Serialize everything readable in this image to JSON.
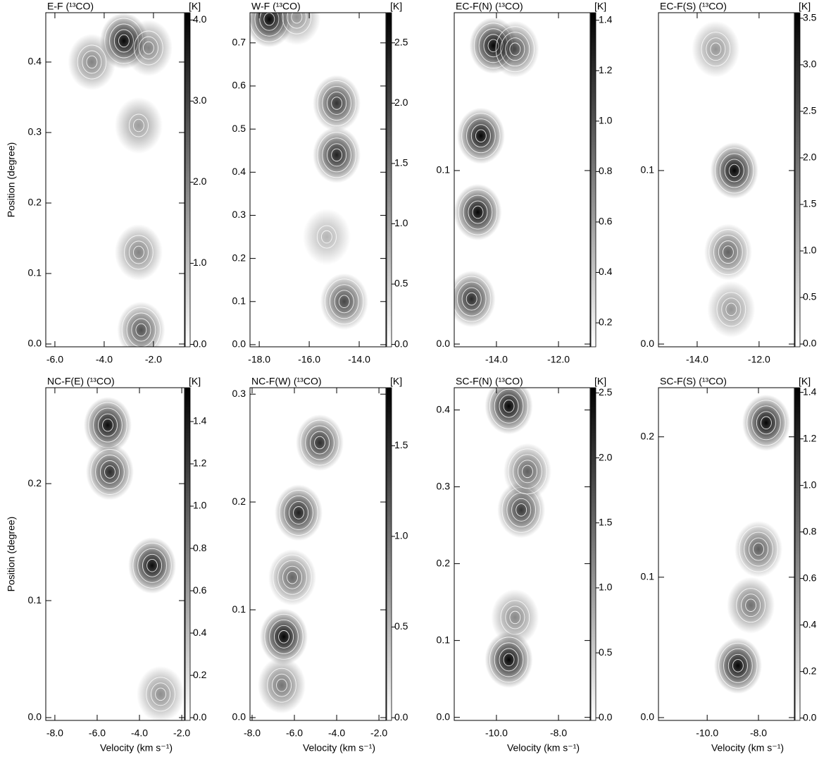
{
  "chart_data": [
    {
      "type": "heatmap",
      "title": "E-F (¹³CO)",
      "ylabel": "Position (degree)",
      "cbar_label": "[K]",
      "xlim": [
        -6.37,
        -0.74
      ],
      "ylim": [
        -0.004,
        0.47
      ],
      "xticks": [
        {
          "value": -6,
          "label": "-6.0"
        },
        {
          "value": -4,
          "label": "-4.0"
        },
        {
          "value": -2,
          "label": "-2.0"
        }
      ],
      "yticks": [
        {
          "value": 0,
          "label": "0.0"
        },
        0.1,
        0.2,
        0.3,
        0.4
      ],
      "cblim": [
        -0.03,
        4.09
      ],
      "cbticks": [
        {
          "value": 0,
          "label": "0.0"
        },
        {
          "value": 1,
          "label": "1.0"
        },
        {
          "value": 2,
          "label": "2.0"
        },
        {
          "value": 3,
          "label": "3.0"
        },
        {
          "value": 4,
          "label": "4.0"
        }
      ],
      "colors": [
        "#ffffff",
        "#000000"
      ],
      "x": [
        -3.2,
        -2.6,
        -2.6,
        -2.5,
        -4.5,
        -2.2
      ],
      "y": [
        0.43,
        0.31,
        0.13,
        0.02,
        0.4,
        0.42
      ],
      "values": [
        4.0,
        1.6,
        2.0,
        2.8,
        2.0,
        2.0
      ]
    },
    {
      "type": "heatmap",
      "title": "W-F (¹³CO)",
      "cbar_label": "[K]",
      "xlim": [
        -18.37,
        -12.93
      ],
      "ylim": [
        -0.005,
        0.77
      ],
      "xticks": [
        {
          "value": -18,
          "label": "-18.0"
        },
        {
          "value": -16,
          "label": "-16.0"
        },
        {
          "value": -14,
          "label": "-14.0"
        }
      ],
      "yticks": [
        {
          "value": 0,
          "label": "0.0"
        },
        0.1,
        0.2,
        0.3,
        0.4,
        0.5,
        0.6,
        0.7
      ],
      "cblim": [
        -0.02,
        2.75
      ],
      "cbticks": [
        {
          "value": 0,
          "label": "0.0"
        },
        0.5,
        {
          "value": 1,
          "label": "1.0"
        },
        1.5,
        {
          "value": 2,
          "label": "2.0"
        },
        2.5
      ],
      "colors": [
        "#ffffff",
        "#000000"
      ],
      "x": [
        -17.6,
        -14.9,
        -14.9,
        -14.6,
        -15.3,
        -16.5
      ],
      "y": [
        0.755,
        0.56,
        0.44,
        0.1,
        0.25,
        0.76
      ],
      "values": [
        2.7,
        2.2,
        2.4,
        2.0,
        0.8,
        1.2
      ]
    },
    {
      "type": "heatmap",
      "title": "EC-F(N) (¹³CO)",
      "cbar_label": "[K]",
      "xlim": [
        -15.36,
        -10.98
      ],
      "ylim": [
        -0.0016,
        0.191
      ],
      "xticks": [
        {
          "value": -14,
          "label": "-14.0"
        },
        {
          "value": -12,
          "label": "-12.0"
        }
      ],
      "yticks": [
        {
          "value": 0,
          "label": "0.0"
        },
        0.1
      ],
      "cblim": [
        0.105,
        1.43
      ],
      "cbticks": [
        0.2,
        0.4,
        0.6,
        0.8,
        {
          "value": 1,
          "label": "1.0"
        },
        1.2,
        1.4
      ],
      "colors": [
        "#ffffff",
        "#000000"
      ],
      "x": [
        -14.1,
        -14.5,
        -14.6,
        -14.8,
        -13.4
      ],
      "y": [
        0.172,
        0.12,
        0.076,
        0.026,
        0.17
      ],
      "values": [
        1.4,
        1.4,
        1.4,
        1.2,
        1.0
      ]
    },
    {
      "type": "heatmap",
      "title": "EC-F(S) (¹³CO)",
      "cbar_label": "[K]",
      "xlim": [
        -15.25,
        -10.86
      ],
      "ylim": [
        -0.0016,
        0.191
      ],
      "xticks": [
        {
          "value": -14,
          "label": "-14.0"
        },
        {
          "value": -12,
          "label": "-12.0"
        }
      ],
      "yticks": [
        {
          "value": 0,
          "label": "0.0"
        },
        0.1
      ],
      "cblim": [
        -0.03,
        3.56
      ],
      "cbticks": [
        {
          "value": 0,
          "label": "0.0"
        },
        0.5,
        {
          "value": 1,
          "label": "1.0"
        },
        1.5,
        {
          "value": 2,
          "label": "2.0"
        },
        2.5,
        {
          "value": 3,
          "label": "3.0"
        },
        3.5
      ],
      "colors": [
        "#ffffff",
        "#000000"
      ],
      "x": [
        -12.8,
        -13.0,
        -13.4,
        -12.9
      ],
      "y": [
        0.1,
        0.053,
        0.17,
        0.02
      ],
      "values": [
        3.5,
        2.2,
        1.5,
        1.5
      ]
    },
    {
      "type": "heatmap",
      "title": "NC-F(E) (¹³CO)",
      "ylabel": "Position (degree)",
      "xlabel": "Velocity (km s⁻¹)",
      "cbar_label": "[K]",
      "xlim": [
        -8.43,
        -1.87
      ],
      "ylim": [
        -0.0024,
        0.282
      ],
      "xticks": [
        {
          "value": -8,
          "label": "-8.0"
        },
        {
          "value": -6,
          "label": "-6.0"
        },
        {
          "value": -4,
          "label": "-4.0"
        },
        {
          "value": -2,
          "label": "-2.0"
        }
      ],
      "yticks": [
        {
          "value": 0,
          "label": "0.0"
        },
        0.1,
        0.2
      ],
      "cblim": [
        -0.013,
        1.56
      ],
      "cbticks": [
        {
          "value": 0,
          "label": "0.0"
        },
        0.2,
        0.4,
        0.6,
        0.8,
        {
          "value": 1,
          "label": "1.0"
        },
        1.2,
        1.4
      ],
      "colors": [
        "#ffffff",
        "#000000"
      ],
      "x": [
        -5.5,
        -5.4,
        -3.4,
        -3.0
      ],
      "y": [
        0.25,
        0.21,
        0.13,
        0.02
      ],
      "values": [
        1.5,
        1.3,
        1.5,
        0.7
      ]
    },
    {
      "type": "heatmap",
      "title": "NC-F(W) (¹³CO)",
      "xlabel": "Velocity (km s⁻¹)",
      "cbar_label": "[K]",
      "xlim": [
        -8.1,
        -1.67
      ],
      "ylim": [
        -0.0026,
        0.306
      ],
      "xticks": [
        {
          "value": -8,
          "label": "-8.0"
        },
        {
          "value": -6,
          "label": "-6.0"
        },
        {
          "value": -4,
          "label": "-4.0"
        },
        {
          "value": -2,
          "label": "-2.0"
        }
      ],
      "yticks": [
        {
          "value": 0,
          "label": "0.0"
        },
        0.1,
        0.2,
        0.3
      ],
      "cblim": [
        -0.015,
        1.82
      ],
      "cbticks": [
        {
          "value": 0,
          "label": "0.0"
        },
        0.5,
        {
          "value": 1,
          "label": "1.0"
        },
        1.5
      ],
      "colors": [
        "#ffffff",
        "#000000"
      ],
      "x": [
        -4.8,
        -5.8,
        -6.1,
        -6.5,
        -6.6
      ],
      "y": [
        0.255,
        0.19,
        0.13,
        0.075,
        0.03
      ],
      "values": [
        1.5,
        1.6,
        1.1,
        1.8,
        1.0
      ]
    },
    {
      "type": "heatmap",
      "title": "SC-F(N) (¹³CO)",
      "xlabel": "Velocity (km s⁻¹)",
      "cbar_label": "[K]",
      "xlim": [
        -11.36,
        -6.98
      ],
      "ylim": [
        -0.004,
        0.429
      ],
      "xticks": [
        {
          "value": -10,
          "label": "-10.0"
        },
        {
          "value": -8,
          "label": "-8.0"
        }
      ],
      "yticks": [
        {
          "value": 0,
          "label": "0.0"
        },
        0.1,
        0.2,
        0.3,
        0.4
      ],
      "cblim": [
        -0.02,
        2.54
      ],
      "cbticks": [
        {
          "value": 0,
          "label": "0.0"
        },
        0.5,
        {
          "value": 1,
          "label": "1.0"
        },
        1.5,
        {
          "value": 2,
          "label": "2.0"
        },
        2.5
      ],
      "colors": [
        "#ffffff",
        "#000000"
      ],
      "x": [
        -9.6,
        -9.2,
        -9.0,
        -9.4,
        -9.6
      ],
      "y": [
        0.405,
        0.27,
        0.32,
        0.13,
        0.075
      ],
      "values": [
        2.5,
        2.0,
        1.6,
        1.2,
        2.5
      ]
    },
    {
      "type": "heatmap",
      "title": "SC-F(S) (¹³CO)",
      "xlabel": "Velocity (km s⁻¹)",
      "cbar_label": "[K]",
      "xlim": [
        -11.9,
        -6.6
      ],
      "ylim": [
        -0.002,
        0.235
      ],
      "xticks": [
        {
          "value": -10,
          "label": "-10.0"
        },
        {
          "value": -8,
          "label": "-8.0"
        }
      ],
      "yticks": [
        {
          "value": 0,
          "label": "0.0"
        },
        0.1,
        0.2
      ],
      "cblim": [
        -0.01,
        1.42
      ],
      "cbticks": [
        {
          "value": 0,
          "label": "0.0"
        },
        0.2,
        0.4,
        0.6,
        0.8,
        {
          "value": 1,
          "label": "1.0"
        },
        1.2,
        1.4
      ],
      "colors": [
        "#ffffff",
        "#000000"
      ],
      "x": [
        -7.7,
        -8.0,
        -8.8,
        -8.3
      ],
      "y": [
        0.21,
        0.12,
        0.037,
        0.08
      ],
      "values": [
        1.4,
        0.9,
        1.4,
        0.8
      ]
    }
  ]
}
